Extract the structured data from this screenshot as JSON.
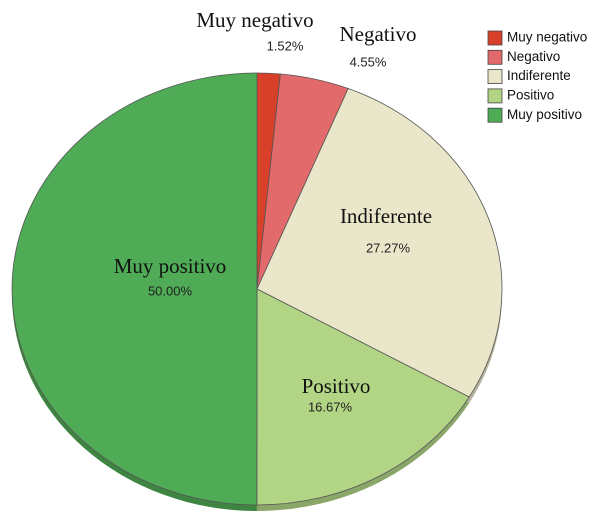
{
  "chart_data": {
    "type": "pie",
    "categories": [
      "Muy negativo",
      "Negativo",
      "Indiferente",
      "Positivo",
      "Muy positivo"
    ],
    "values": [
      1.52,
      4.55,
      27.27,
      16.67,
      50.0
    ],
    "value_labels": [
      "1.52%",
      "4.55%",
      "27.27%",
      "16.67%",
      "50.00%"
    ],
    "colors": [
      "#d8402a",
      "#e26a6a",
      "#e9e6c9",
      "#b1d585",
      "#4fab55"
    ],
    "legend": "top-right"
  }
}
